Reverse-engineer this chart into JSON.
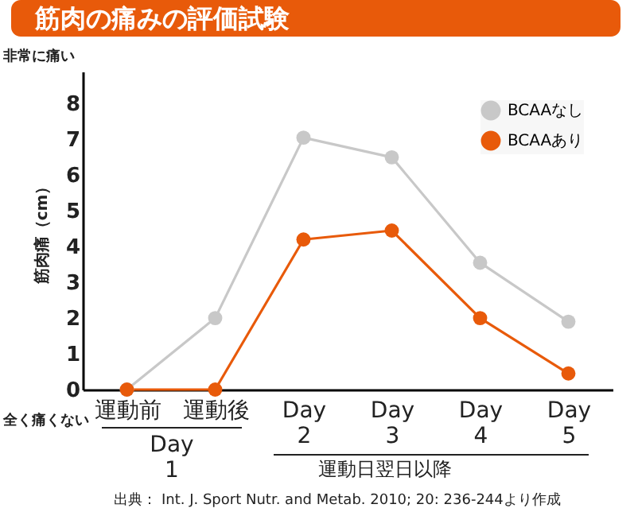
{
  "chart_data": {
    "type": "line",
    "title": "筋肉の痛みの評価試験",
    "ylabel": "筋肉痛（cm）",
    "categories": [
      "運動前",
      "運動後",
      "Day\n2",
      "Day\n3",
      "Day\n4",
      "Day\n5"
    ],
    "series": [
      {
        "name": "BCAAなし",
        "color": "#c8c8c8",
        "values": [
          0,
          2.0,
          7.05,
          6.5,
          3.55,
          1.9
        ]
      },
      {
        "name": "BCAAあり",
        "color": "#e85a0a",
        "values": [
          0,
          0,
          4.2,
          4.45,
          2.0,
          0.45
        ]
      }
    ],
    "ylim": [
      0,
      8.9
    ],
    "yticks": [
      0,
      1,
      2,
      3,
      4,
      5,
      6,
      7,
      8
    ],
    "grid": false,
    "legend": "top right",
    "marker": "circle",
    "line_style": "solid",
    "annotations": [
      "非常に痛い",
      "全く痛くない",
      "Day\n1",
      "運動日翌日以降",
      "出典： Int. J. Sport Nutr. and Metab.  2010; 20: 236-244より作成"
    ]
  }
}
